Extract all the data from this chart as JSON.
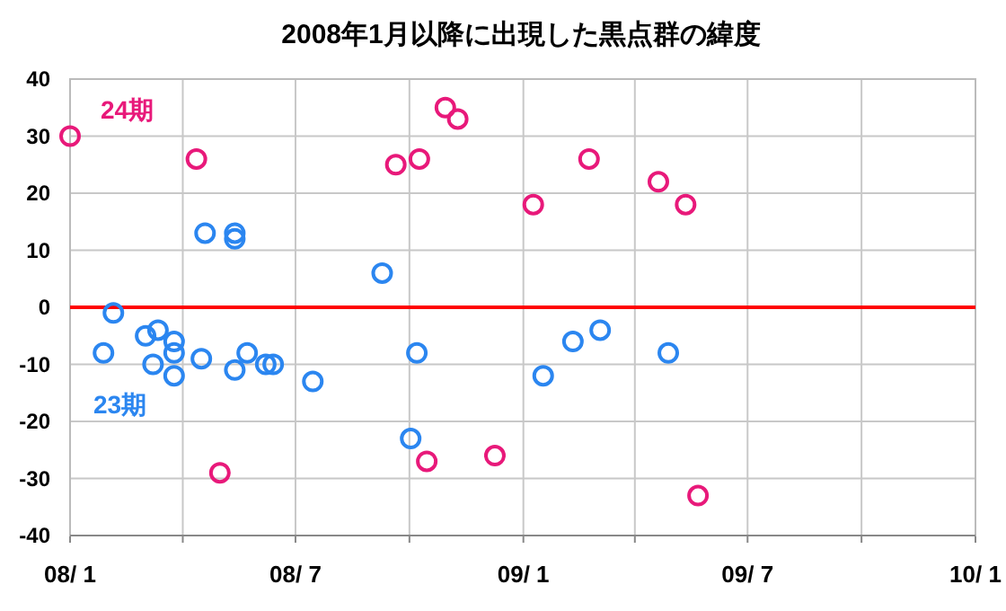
{
  "chart_data": {
    "type": "scatter",
    "title": "2008年1月以降に出現した黒点群の緯度",
    "xlim": [
      "2008-01-01",
      "2010-01-01"
    ],
    "xticks": [
      {
        "value": "2008-01-01",
        "label": "08/ 1"
      },
      {
        "value": "2008-04-01",
        "label": null
      },
      {
        "value": "2008-07-01",
        "label": "08/ 7"
      },
      {
        "value": "2008-10-01",
        "label": null
      },
      {
        "value": "2009-01-01",
        "label": "09/ 1"
      },
      {
        "value": "2009-04-01",
        "label": null
      },
      {
        "value": "2009-07-01",
        "label": "09/ 7"
      },
      {
        "value": "2009-10-01",
        "label": null
      },
      {
        "value": "2010-01-01",
        "label": "10/ 1"
      }
    ],
    "ylim": [
      -40,
      40
    ],
    "yticks": [
      -40,
      -30,
      -20,
      -10,
      0,
      10,
      20,
      30,
      40
    ],
    "grid": true,
    "marker": "circle",
    "ref_lines": [
      {
        "axis": "y",
        "value": 0,
        "color": "#ff0000"
      }
    ],
    "series": [
      {
        "name": "24期",
        "color": "#e8197a",
        "x": [
          "2008-01-01",
          "2008-04-12",
          "2008-05-01",
          "2008-09-20",
          "2008-10-09",
          "2008-10-15",
          "2008-10-30",
          "2008-11-09",
          "2008-12-09",
          "2009-01-09",
          "2009-02-23",
          "2009-04-20",
          "2009-05-12",
          "2009-05-22"
        ],
        "values": [
          30,
          26,
          -29,
          25,
          26,
          -27,
          35,
          33,
          -26,
          18,
          26,
          22,
          18,
          -33
        ]
      },
      {
        "name": "23期",
        "color": "#2b86f0",
        "x": [
          "2008-01-28",
          "2008-02-05",
          "2008-03-02",
          "2008-03-08",
          "2008-03-12",
          "2008-03-25",
          "2008-03-25",
          "2008-03-25",
          "2008-04-16",
          "2008-04-19",
          "2008-05-13",
          "2008-05-13",
          "2008-05-13",
          "2008-05-23",
          "2008-06-07",
          "2008-06-13",
          "2008-07-15",
          "2008-09-09",
          "2008-10-02",
          "2008-10-07",
          "2009-01-17",
          "2009-02-10",
          "2009-03-04",
          "2009-04-28"
        ],
        "values": [
          -8,
          -1,
          -5,
          -10,
          -4,
          -6,
          -8,
          -12,
          -9,
          13,
          13,
          12,
          -11,
          -8,
          -10,
          -10,
          -13,
          6,
          -23,
          -8,
          -12,
          -6,
          -4,
          -8
        ]
      }
    ]
  }
}
